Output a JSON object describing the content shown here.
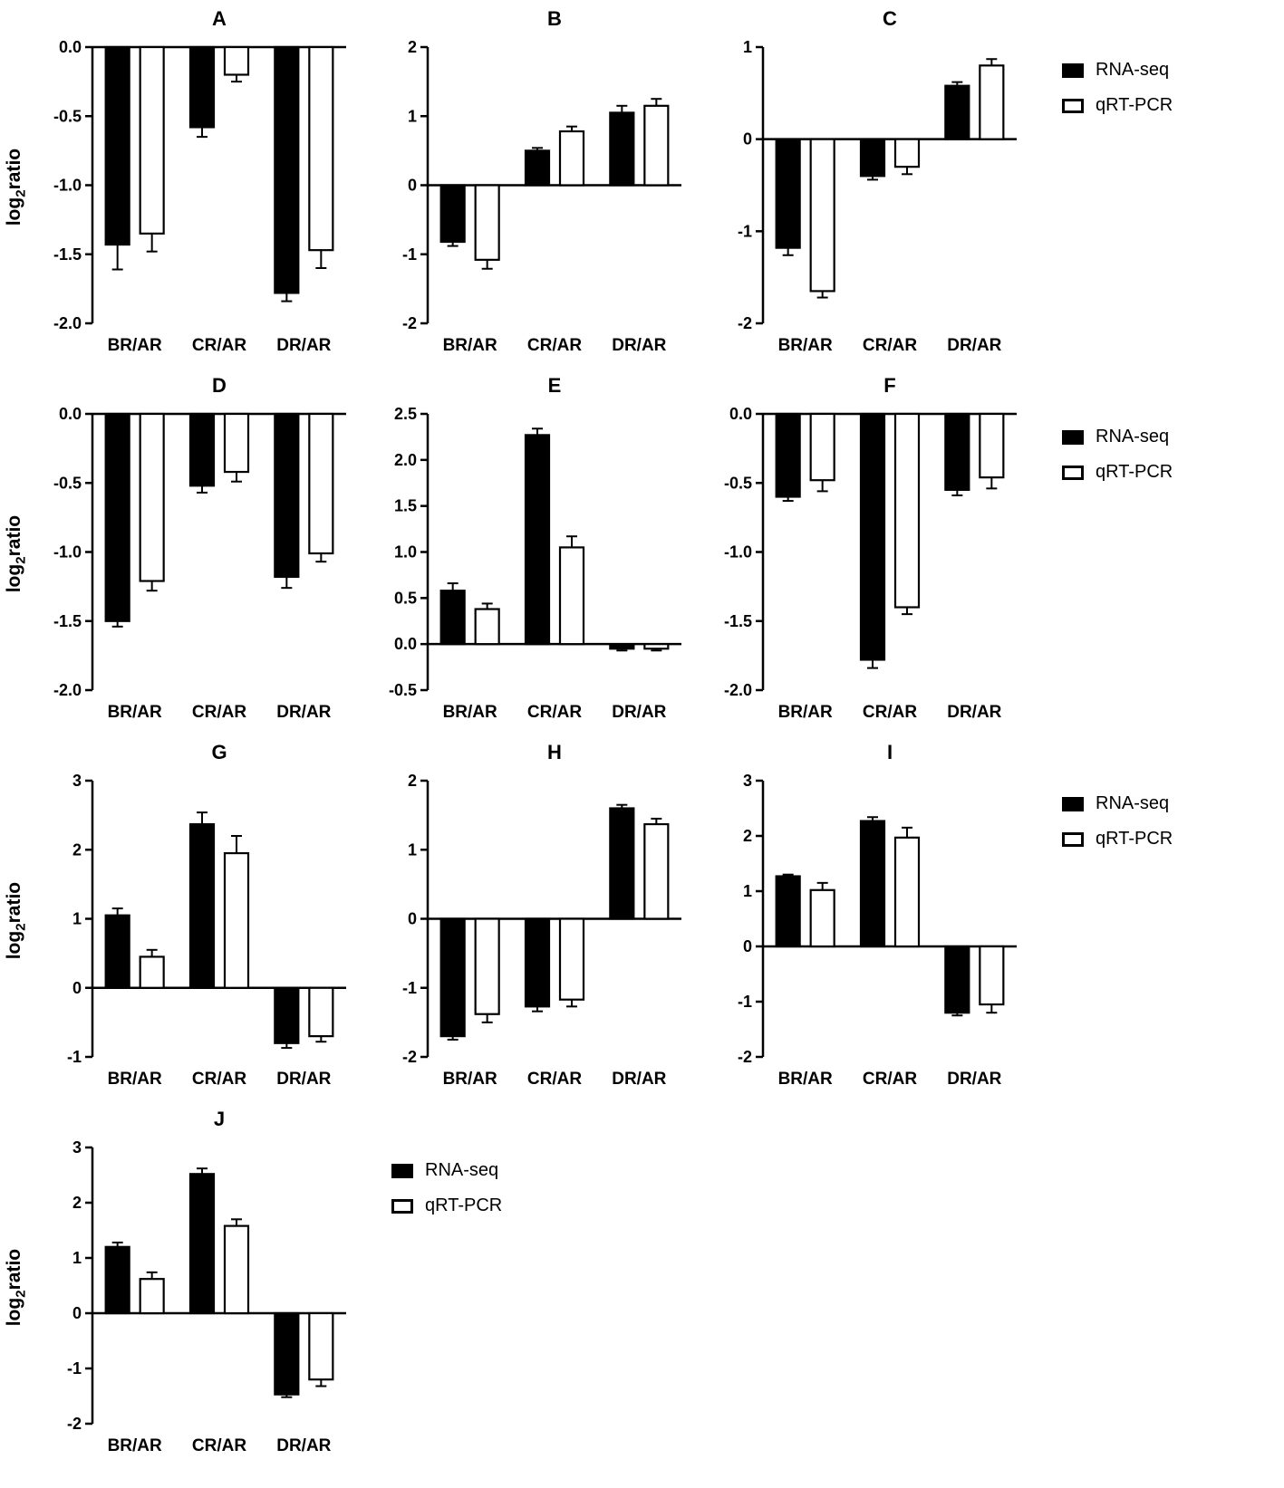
{
  "figure": {
    "ylabel": {
      "pre": "log",
      "sub": "2",
      "post": "ratio"
    },
    "legend": {
      "items": [
        {
          "label": "RNA-seq",
          "fill": "#000000"
        },
        {
          "label": "qRT-PCR",
          "fill": "#ffffff"
        }
      ]
    },
    "colors": {
      "axis": "#000000",
      "background": "#ffffff",
      "bar_filled": "#000000",
      "bar_open": "#ffffff"
    },
    "rows": [
      {
        "charts": [
          "A",
          "B",
          "C"
        ],
        "legend": true
      },
      {
        "charts": [
          "D",
          "E",
          "F"
        ],
        "legend": true
      },
      {
        "charts": [
          "G",
          "H",
          "I"
        ],
        "legend": true
      },
      {
        "charts": [
          "J"
        ],
        "legend": true
      }
    ]
  },
  "chart_data": [
    {
      "type": "bar",
      "panel": "A",
      "title": "A",
      "categories": [
        "BR/AR",
        "CR/AR",
        "DR/AR"
      ],
      "ylim": [
        -2.0,
        0.0
      ],
      "yticks": [
        0.0,
        -0.5,
        -1.0,
        -1.5,
        -2.0
      ],
      "tick_decimals": 1,
      "ylabel": "log2ratio",
      "series": [
        {
          "name": "RNA-seq",
          "values": [
            -1.43,
            -0.58,
            -1.78
          ],
          "errors": [
            0.18,
            0.07,
            0.06
          ]
        },
        {
          "name": "qRT-PCR",
          "values": [
            -1.35,
            -0.2,
            -1.47
          ],
          "errors": [
            0.13,
            0.05,
            0.13
          ]
        }
      ]
    },
    {
      "type": "bar",
      "panel": "B",
      "title": "B",
      "categories": [
        "BR/AR",
        "CR/AR",
        "DR/AR"
      ],
      "ylim": [
        -2,
        2
      ],
      "yticks": [
        2,
        1,
        0,
        -1,
        -2
      ],
      "tick_decimals": 0,
      "ylabel": "log2ratio",
      "series": [
        {
          "name": "RNA-seq",
          "values": [
            -0.82,
            0.5,
            1.05
          ],
          "errors": [
            0.06,
            0.04,
            0.1
          ]
        },
        {
          "name": "qRT-PCR",
          "values": [
            -1.08,
            0.78,
            1.15
          ],
          "errors": [
            0.13,
            0.07,
            0.1
          ]
        }
      ]
    },
    {
      "type": "bar",
      "panel": "C",
      "title": "C",
      "categories": [
        "BR/AR",
        "CR/AR",
        "DR/AR"
      ],
      "ylim": [
        -2,
        1
      ],
      "yticks": [
        1,
        0,
        -1,
        -2
      ],
      "tick_decimals": 0,
      "ylabel": "log2ratio",
      "series": [
        {
          "name": "RNA-seq",
          "values": [
            -1.18,
            -0.4,
            0.58
          ],
          "errors": [
            0.08,
            0.04,
            0.04
          ]
        },
        {
          "name": "qRT-PCR",
          "values": [
            -1.65,
            -0.3,
            0.8
          ],
          "errors": [
            0.07,
            0.08,
            0.07
          ]
        }
      ]
    },
    {
      "type": "bar",
      "panel": "D",
      "title": "D",
      "categories": [
        "BR/AR",
        "CR/AR",
        "DR/AR"
      ],
      "ylim": [
        -2.0,
        0.0
      ],
      "yticks": [
        0.0,
        -0.5,
        -1.0,
        -1.5,
        -2.0
      ],
      "tick_decimals": 1,
      "ylabel": "log2ratio",
      "series": [
        {
          "name": "RNA-seq",
          "values": [
            -1.5,
            -0.52,
            -1.18
          ],
          "errors": [
            0.04,
            0.05,
            0.08
          ]
        },
        {
          "name": "qRT-PCR",
          "values": [
            -1.21,
            -0.42,
            -1.01
          ],
          "errors": [
            0.07,
            0.07,
            0.06
          ]
        }
      ]
    },
    {
      "type": "bar",
      "panel": "E",
      "title": "E",
      "categories": [
        "BR/AR",
        "CR/AR",
        "DR/AR"
      ],
      "ylim": [
        -0.5,
        2.5
      ],
      "yticks": [
        2.5,
        2.0,
        1.5,
        1.0,
        0.5,
        0.0,
        -0.5
      ],
      "tick_decimals": 1,
      "ylabel": "log2ratio",
      "series": [
        {
          "name": "RNA-seq",
          "values": [
            0.58,
            2.27,
            -0.05
          ],
          "errors": [
            0.08,
            0.07,
            0.02
          ]
        },
        {
          "name": "qRT-PCR",
          "values": [
            0.38,
            1.05,
            -0.05
          ],
          "errors": [
            0.06,
            0.12,
            0.02
          ]
        }
      ]
    },
    {
      "type": "bar",
      "panel": "F",
      "title": "F",
      "categories": [
        "BR/AR",
        "CR/AR",
        "DR/AR"
      ],
      "ylim": [
        -2.0,
        0.0
      ],
      "yticks": [
        0.0,
        -0.5,
        -1.0,
        -1.5,
        -2.0
      ],
      "tick_decimals": 1,
      "ylabel": "log2ratio",
      "series": [
        {
          "name": "RNA-seq",
          "values": [
            -0.6,
            -1.78,
            -0.55
          ],
          "errors": [
            0.03,
            0.06,
            0.04
          ]
        },
        {
          "name": "qRT-PCR",
          "values": [
            -0.48,
            -1.4,
            -0.46
          ],
          "errors": [
            0.08,
            0.05,
            0.08
          ]
        }
      ]
    },
    {
      "type": "bar",
      "panel": "G",
      "title": "G",
      "categories": [
        "BR/AR",
        "CR/AR",
        "DR/AR"
      ],
      "ylim": [
        -1,
        3
      ],
      "yticks": [
        3,
        2,
        1,
        0,
        -1
      ],
      "tick_decimals": 0,
      "ylabel": "log2ratio",
      "series": [
        {
          "name": "RNA-seq",
          "values": [
            1.05,
            2.37,
            -0.8
          ],
          "errors": [
            0.1,
            0.17,
            0.07
          ]
        },
        {
          "name": "qRT-PCR",
          "values": [
            0.45,
            1.95,
            -0.7
          ],
          "errors": [
            0.1,
            0.25,
            0.08
          ]
        }
      ]
    },
    {
      "type": "bar",
      "panel": "H",
      "title": "H",
      "categories": [
        "BR/AR",
        "CR/AR",
        "DR/AR"
      ],
      "ylim": [
        -2,
        2
      ],
      "yticks": [
        2,
        1,
        0,
        -1,
        -2
      ],
      "tick_decimals": 0,
      "ylabel": "log2ratio",
      "series": [
        {
          "name": "RNA-seq",
          "values": [
            -1.7,
            -1.27,
            1.6
          ],
          "errors": [
            0.05,
            0.07,
            0.05
          ]
        },
        {
          "name": "qRT-PCR",
          "values": [
            -1.38,
            -1.17,
            1.37
          ],
          "errors": [
            0.12,
            0.1,
            0.08
          ]
        }
      ]
    },
    {
      "type": "bar",
      "panel": "I",
      "title": "I",
      "categories": [
        "BR/AR",
        "CR/AR",
        "DR/AR"
      ],
      "ylim": [
        -2,
        3
      ],
      "yticks": [
        3,
        2,
        1,
        0,
        -1,
        -2
      ],
      "tick_decimals": 0,
      "ylabel": "log2ratio",
      "series": [
        {
          "name": "RNA-seq",
          "values": [
            1.27,
            2.27,
            -1.2
          ],
          "errors": [
            0.03,
            0.07,
            0.05
          ]
        },
        {
          "name": "qRT-PCR",
          "values": [
            1.02,
            1.97,
            -1.05
          ],
          "errors": [
            0.13,
            0.18,
            0.15
          ]
        }
      ]
    },
    {
      "type": "bar",
      "panel": "J",
      "title": "J",
      "categories": [
        "BR/AR",
        "CR/AR",
        "DR/AR"
      ],
      "ylim": [
        -2,
        3
      ],
      "yticks": [
        3,
        2,
        1,
        0,
        -1,
        -2
      ],
      "tick_decimals": 0,
      "ylabel": "log2ratio",
      "series": [
        {
          "name": "RNA-seq",
          "values": [
            1.2,
            2.52,
            -1.47
          ],
          "errors": [
            0.08,
            0.1,
            0.05
          ]
        },
        {
          "name": "qRT-PCR",
          "values": [
            0.62,
            1.58,
            -1.2
          ],
          "errors": [
            0.12,
            0.12,
            0.12
          ]
        }
      ]
    }
  ]
}
